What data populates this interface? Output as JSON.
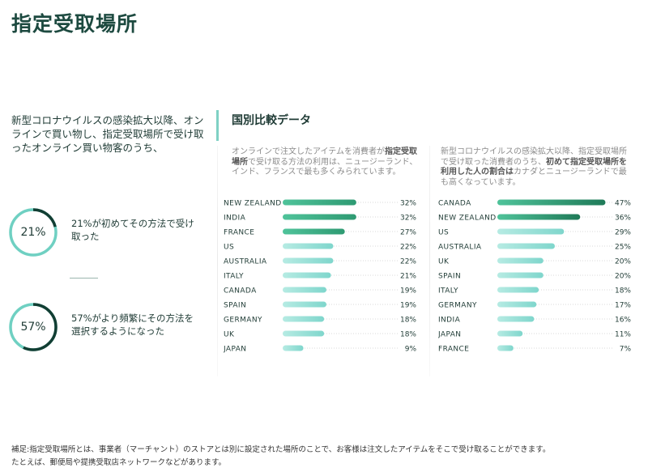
{
  "page": {
    "title": "指定受取場所",
    "intro": "新型コロナウイルスの感染拡大以降、オンラインで買い物し、指定受取場所で受け取ったオンライン買い物客のうち、"
  },
  "stats": [
    {
      "value_label": "21%",
      "value": 21,
      "text": "21%が初めてその方法で受け取った"
    },
    {
      "value_label": "57%",
      "value": 57,
      "text": "57%がより頻繁にその方法を選択するようになった"
    }
  ],
  "section": {
    "title": "国別比較データ"
  },
  "panels": [
    {
      "desc_parts": [
        {
          "t": "オンラインで注文したアイテムを消費者が",
          "b": false
        },
        {
          "t": "指定受取場所",
          "b": true
        },
        {
          "t": "で受け取る方法の利用は、ニュージーランド、インド、フランスで最も多くみられています。",
          "b": false
        }
      ]
    },
    {
      "desc_parts": [
        {
          "t": "新型コロナウイルスの感染拡大以降、指定受取場所で受け取った消費者のうち、",
          "b": false
        },
        {
          "t": "初めて指定受取場所を利用した人の割合は",
          "b": true
        },
        {
          "t": "カナダとニュージーランドで最も高くなっています。",
          "b": false
        }
      ]
    }
  ],
  "chart_data": [
    {
      "type": "bar",
      "orientation": "horizontal",
      "categories": [
        "NEW ZEALAND",
        "INDIA",
        "FRANCE",
        "US",
        "AUSTRALIA",
        "ITALY",
        "CANADA",
        "SPAIN",
        "GERMANY",
        "UK",
        "JAPAN"
      ],
      "values": [
        32,
        32,
        27,
        22,
        22,
        21,
        19,
        19,
        18,
        18,
        9
      ],
      "value_labels": [
        "32%",
        "32%",
        "27%",
        "22%",
        "22%",
        "21%",
        "19%",
        "19%",
        "18%",
        "18%",
        "9%"
      ],
      "xlim": [
        0,
        50
      ],
      "highlight_top": 3,
      "colors": {
        "highlight": "#2e9a72",
        "normal": "#7fd6cc",
        "track": "#d9d9d9"
      }
    },
    {
      "type": "bar",
      "orientation": "horizontal",
      "categories": [
        "CANADA",
        "NEW ZEALAND",
        "US",
        "AUSTRALIA",
        "UK",
        "SPAIN",
        "ITALY",
        "GERMANY",
        "INDIA",
        "JAPAN",
        "FRANCE"
      ],
      "values": [
        47,
        36,
        29,
        25,
        20,
        20,
        18,
        17,
        16,
        11,
        7
      ],
      "value_labels": [
        "47%",
        "36%",
        "29%",
        "25%",
        "20%",
        "20%",
        "18%",
        "17%",
        "16%",
        "11%",
        "7%"
      ],
      "xlim": [
        0,
        50
      ],
      "highlight_top": 2,
      "colors": {
        "highlight": "#1f7a58",
        "normal": "#7fd6cc",
        "track": "#d9d9d9"
      }
    }
  ],
  "footnote": {
    "line1": "補足:指定受取場所とは、事業者（マーチャント）のストアとは別に設定された場所のことで、お客様は注文したアイテムをそこで受け取ることができます。",
    "line2": "たとえば、郵便局や提携受取店ネットワークなどがあります。"
  },
  "colors": {
    "accent": "#6fd0c2",
    "ring_dark": "#123e33",
    "title": "#1d4a40"
  }
}
